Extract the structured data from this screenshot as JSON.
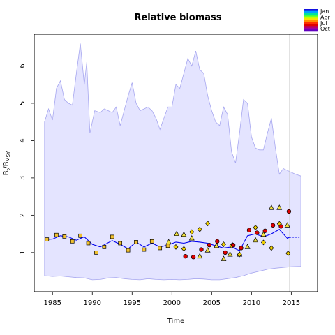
{
  "chart_data": {
    "type": "line",
    "title": "Relative biomass",
    "xlabel": "Time",
    "ylabel_main": "B",
    "ylabel_sub1": "t",
    "ylabel_slash": "/B",
    "ylabel_sub2": "MSY",
    "xlim": [
      1982.7,
      2018.3
    ],
    "ylim": [
      -0.05,
      6.85
    ],
    "x_ticks": [
      1985,
      1990,
      1995,
      2000,
      2005,
      2010,
      2015
    ],
    "y_ticks": [
      1,
      2,
      3,
      4,
      5,
      6
    ],
    "reference_hline": 0.5,
    "reference_vline": 2014.8,
    "legend": {
      "placement": "top-right",
      "months": [
        "Jan",
        "Apr",
        "Jul",
        "Oct"
      ],
      "colors": [
        "#1010e0",
        "#00a0ff",
        "#00e0a0",
        "#40ff40",
        "#c0ff00",
        "#ffe000",
        "#ff9000",
        "#ff3000",
        "#e00000",
        "#c00050",
        "#a000a0",
        "#6000c0"
      ]
    },
    "colors": {
      "band_fill": "#e4e4ff",
      "band_edge": "#a6a6ef",
      "median_line": "#0000ee",
      "axis": "#000000",
      "ref_vline": "#c8c8c8"
    },
    "series": [
      {
        "role": "median",
        "x": [
          1984.2,
          1985.0,
          1986.0,
          1987.0,
          1988.0,
          1989.0,
          1990.0,
          1991.0,
          1992.5,
          1993.5,
          1994.5,
          1995.5,
          1996.5,
          1997.5,
          1998.5,
          1999.5,
          2000.5,
          2001.5,
          2002.5,
          2003.5,
          2004.5,
          2005.5,
          2006.5,
          2007.5,
          2008.5,
          2009.5,
          2010.5,
          2011.5,
          2012.5,
          2013.5,
          2014.5,
          2014.8
        ],
        "y": [
          1.35,
          1.36,
          1.45,
          1.42,
          1.33,
          1.42,
          1.22,
          1.15,
          1.32,
          1.22,
          1.1,
          1.28,
          1.15,
          1.25,
          1.15,
          1.2,
          1.28,
          1.25,
          1.3,
          1.28,
          1.25,
          1.18,
          1.12,
          1.15,
          1.05,
          1.45,
          1.5,
          1.42,
          1.5,
          1.62,
          1.38,
          1.41
        ]
      },
      {
        "role": "projection",
        "x": [
          2014.8,
          2015.5,
          2016.2
        ],
        "y": [
          1.41,
          1.41,
          1.41
        ]
      },
      {
        "role": "upper_band",
        "x": [
          1984.0,
          1984.5,
          1985.0,
          1985.5,
          1986.0,
          1986.5,
          1987.0,
          1987.5,
          1988.0,
          1988.5,
          1989.0,
          1989.3,
          1989.7,
          1990.3,
          1991.0,
          1991.5,
          1992.5,
          1993.0,
          1993.5,
          1994.5,
          1995.0,
          1995.5,
          1996.0,
          1996.5,
          1997.0,
          1997.5,
          1998.0,
          1998.5,
          1999.0,
          1999.5,
          2000.0,
          2000.5,
          2001.0,
          2001.5,
          2002.0,
          2002.5,
          2003.0,
          2003.5,
          2004.0,
          2004.5,
          2005.0,
          2005.5,
          2006.0,
          2006.5,
          2007.0,
          2007.5,
          2008.0,
          2008.5,
          2009.0,
          2009.5,
          2010.0,
          2010.5,
          2011.0,
          2011.5,
          2012.0,
          2012.5,
          2013.0,
          2013.5,
          2014.0,
          2014.5,
          2015.0,
          2015.5,
          2016.2
        ],
        "y": [
          4.5,
          4.85,
          4.55,
          5.4,
          5.6,
          5.1,
          5.0,
          4.95,
          5.8,
          6.6,
          5.5,
          6.1,
          4.2,
          4.8,
          4.75,
          4.85,
          4.75,
          4.9,
          4.4,
          5.2,
          5.55,
          5.0,
          4.8,
          4.85,
          4.9,
          4.8,
          4.6,
          4.3,
          4.6,
          4.9,
          4.9,
          5.5,
          5.4,
          5.8,
          6.2,
          6.0,
          6.4,
          5.9,
          5.8,
          5.2,
          4.8,
          4.5,
          4.4,
          4.9,
          4.7,
          3.7,
          3.4,
          4.2,
          5.1,
          5.0,
          4.1,
          3.8,
          3.75,
          3.75,
          4.2,
          4.6,
          3.8,
          3.1,
          3.25,
          3.2,
          3.15,
          3.1,
          3.05
        ]
      },
      {
        "role": "lower_band",
        "x": [
          1984.0,
          1985.0,
          1986.0,
          1987.0,
          1988.0,
          1989.0,
          1990.0,
          1991.0,
          1992.0,
          1993.0,
          1994.0,
          1995.0,
          1996.0,
          1997.0,
          1998.0,
          1999.0,
          2000.0,
          2001.0,
          2002.0,
          2003.0,
          2004.0,
          2005.0,
          2006.0,
          2007.0,
          2008.0,
          2009.0,
          2010.0,
          2011.0,
          2012.0,
          2013.0,
          2014.0,
          2015.0,
          2016.2
        ],
        "y": [
          0.38,
          0.36,
          0.37,
          0.35,
          0.33,
          0.32,
          0.27,
          0.28,
          0.32,
          0.33,
          0.3,
          0.28,
          0.27,
          0.3,
          0.28,
          0.27,
          0.28,
          0.27,
          0.28,
          0.3,
          0.29,
          0.27,
          0.27,
          0.3,
          0.33,
          0.38,
          0.45,
          0.5,
          0.55,
          0.58,
          0.6,
          0.62,
          0.63
        ]
      }
    ],
    "observations": [
      {
        "x": 1984.3,
        "y": 1.35,
        "shape": "square",
        "color": "#f0c030"
      },
      {
        "x": 1985.5,
        "y": 1.47,
        "shape": "square",
        "color": "#f0c030"
      },
      {
        "x": 1986.5,
        "y": 1.43,
        "shape": "square",
        "color": "#f0c030"
      },
      {
        "x": 1987.5,
        "y": 1.3,
        "shape": "square",
        "color": "#f0c030"
      },
      {
        "x": 1988.5,
        "y": 1.45,
        "shape": "square",
        "color": "#f0c030"
      },
      {
        "x": 1989.5,
        "y": 1.25,
        "shape": "square",
        "color": "#f0c030"
      },
      {
        "x": 1990.5,
        "y": 1.0,
        "shape": "square",
        "color": "#f0c030"
      },
      {
        "x": 1991.5,
        "y": 1.15,
        "shape": "square",
        "color": "#f0c030"
      },
      {
        "x": 1992.5,
        "y": 1.42,
        "shape": "square",
        "color": "#f0c030"
      },
      {
        "x": 1993.5,
        "y": 1.25,
        "shape": "square",
        "color": "#f0c030"
      },
      {
        "x": 1994.5,
        "y": 1.06,
        "shape": "square",
        "color": "#f0c030"
      },
      {
        "x": 1995.5,
        "y": 1.28,
        "shape": "square",
        "color": "#f0c030"
      },
      {
        "x": 1996.5,
        "y": 1.08,
        "shape": "square",
        "color": "#f0c030"
      },
      {
        "x": 1997.5,
        "y": 1.3,
        "shape": "square",
        "color": "#f0c030"
      },
      {
        "x": 1998.5,
        "y": 1.12,
        "shape": "square",
        "color": "#f0c030"
      },
      {
        "x": 1999.5,
        "y": 1.18,
        "shape": "square",
        "color": "#f0c030"
      },
      {
        "x": 1999.6,
        "y": 1.28,
        "shape": "triangle",
        "color": "#f0e040"
      },
      {
        "x": 2000.6,
        "y": 1.5,
        "shape": "triangle",
        "color": "#f0e040"
      },
      {
        "x": 2001.5,
        "y": 1.48,
        "shape": "triangle",
        "color": "#f0e040"
      },
      {
        "x": 2002.5,
        "y": 1.38,
        "shape": "triangle",
        "color": "#f0e040"
      },
      {
        "x": 2003.5,
        "y": 0.9,
        "shape": "triangle",
        "color": "#f0e040"
      },
      {
        "x": 2004.5,
        "y": 1.06,
        "shape": "triangle",
        "color": "#f0e040"
      },
      {
        "x": 2005.6,
        "y": 1.18,
        "shape": "triangle",
        "color": "#f0e040"
      },
      {
        "x": 2006.5,
        "y": 0.83,
        "shape": "triangle",
        "color": "#f0e040"
      },
      {
        "x": 2007.3,
        "y": 0.95,
        "shape": "triangle",
        "color": "#f0e040"
      },
      {
        "x": 2007.6,
        "y": 1.2,
        "shape": "triangle",
        "color": "#f0e040"
      },
      {
        "x": 2008.5,
        "y": 0.95,
        "shape": "triangle",
        "color": "#f0e040"
      },
      {
        "x": 2009.5,
        "y": 1.15,
        "shape": "triangle",
        "color": "#f0e040"
      },
      {
        "x": 2010.5,
        "y": 1.33,
        "shape": "triangle",
        "color": "#f0e040"
      },
      {
        "x": 2011.5,
        "y": 1.48,
        "shape": "triangle",
        "color": "#f0e040"
      },
      {
        "x": 2012.5,
        "y": 2.2,
        "shape": "triangle",
        "color": "#f0e040"
      },
      {
        "x": 2013.5,
        "y": 2.2,
        "shape": "triangle",
        "color": "#f0e040"
      },
      {
        "x": 2014.5,
        "y": 1.73,
        "shape": "triangle",
        "color": "#f0e040"
      },
      {
        "x": 2000.5,
        "y": 1.15,
        "shape": "diamond",
        "color": "#f0d000"
      },
      {
        "x": 2001.5,
        "y": 1.1,
        "shape": "diamond",
        "color": "#f0d000"
      },
      {
        "x": 2002.5,
        "y": 1.55,
        "shape": "diamond",
        "color": "#f0d000"
      },
      {
        "x": 2003.5,
        "y": 1.62,
        "shape": "diamond",
        "color": "#f0d000"
      },
      {
        "x": 2004.5,
        "y": 1.78,
        "shape": "diamond",
        "color": "#f0d000"
      },
      {
        "x": 2006.5,
        "y": 1.22,
        "shape": "diamond",
        "color": "#f0d000"
      },
      {
        "x": 2007.5,
        "y": 1.18,
        "shape": "diamond",
        "color": "#f0d000"
      },
      {
        "x": 2008.5,
        "y": 0.95,
        "shape": "diamond",
        "color": "#f0d000"
      },
      {
        "x": 2010.5,
        "y": 1.67,
        "shape": "diamond",
        "color": "#f0d000"
      },
      {
        "x": 2011.5,
        "y": 1.27,
        "shape": "diamond",
        "color": "#f0d000"
      },
      {
        "x": 2012.5,
        "y": 1.12,
        "shape": "diamond",
        "color": "#f0d000"
      },
      {
        "x": 2013.5,
        "y": 1.77,
        "shape": "diamond",
        "color": "#f0d000"
      },
      {
        "x": 2014.6,
        "y": 0.98,
        "shape": "diamond",
        "color": "#f0d000"
      },
      {
        "x": 2001.7,
        "y": 0.9,
        "shape": "circle",
        "color": "#e00000"
      },
      {
        "x": 2002.7,
        "y": 0.88,
        "shape": "circle",
        "color": "#e00000"
      },
      {
        "x": 2003.7,
        "y": 1.08,
        "shape": "circle",
        "color": "#e00000"
      },
      {
        "x": 2004.7,
        "y": 1.2,
        "shape": "circle",
        "color": "#e00000"
      },
      {
        "x": 2005.7,
        "y": 1.3,
        "shape": "circle",
        "color": "#e00000"
      },
      {
        "x": 2006.7,
        "y": 1.0,
        "shape": "circle",
        "color": "#e00000"
      },
      {
        "x": 2007.7,
        "y": 1.2,
        "shape": "circle",
        "color": "#e00000"
      },
      {
        "x": 2008.7,
        "y": 1.12,
        "shape": "circle",
        "color": "#e00000"
      },
      {
        "x": 2009.7,
        "y": 1.6,
        "shape": "circle",
        "color": "#e00000"
      },
      {
        "x": 2010.7,
        "y": 1.53,
        "shape": "circle",
        "color": "#e00000"
      },
      {
        "x": 2011.7,
        "y": 1.58,
        "shape": "circle",
        "color": "#e00000"
      },
      {
        "x": 2012.7,
        "y": 1.73,
        "shape": "circle",
        "color": "#e00000"
      },
      {
        "x": 2013.7,
        "y": 1.7,
        "shape": "circle",
        "color": "#e00000"
      },
      {
        "x": 2014.7,
        "y": 2.1,
        "shape": "circle",
        "color": "#e00000"
      }
    ]
  }
}
